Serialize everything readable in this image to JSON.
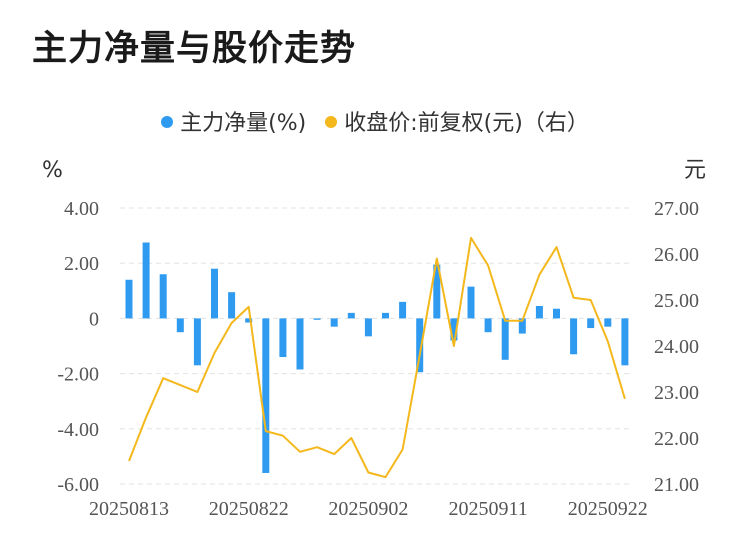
{
  "chart_data": {
    "type": "bar+line",
    "title": "主力净量与股价走势",
    "legend": [
      {
        "name": "主力净量(%)",
        "color": "#2f9bf0"
      },
      {
        "name": "收盘价:前复权(元)（右）",
        "color": "#f4b81c"
      }
    ],
    "left_unit": "%",
    "right_unit": "元",
    "left_ticks": [
      "4.00",
      "2.00",
      "0",
      "-2.00",
      "-4.00",
      "-6.00"
    ],
    "right_ticks": [
      "27.00",
      "26.00",
      "25.00",
      "24.00",
      "23.00",
      "22.00",
      "21.00"
    ],
    "left_range": [
      -6,
      4
    ],
    "right_range": [
      21,
      27
    ],
    "x_tick_labels": [
      "20250813",
      "20250822",
      "20250902",
      "20250911",
      "20250922"
    ],
    "x_tick_indices": [
      0,
      7,
      14,
      21,
      28
    ],
    "x": [
      "20250813",
      "20250814",
      "20250815",
      "20250818",
      "20250819",
      "20250820",
      "20250821",
      "20250822",
      "20250825",
      "20250826",
      "20250827",
      "20250828",
      "20250829",
      "20250901",
      "20250902",
      "20250903",
      "20250904",
      "20250905",
      "20250908",
      "20250909",
      "20250910",
      "20250911",
      "20250912",
      "20250915",
      "20250916",
      "20250917",
      "20250918",
      "20250919",
      "20250922",
      "20250923"
    ],
    "series": [
      {
        "name": "主力净量(%)",
        "type": "bar",
        "axis": "left",
        "color": "#2f9bf0",
        "values": [
          1.4,
          2.75,
          1.6,
          -0.5,
          -1.7,
          1.8,
          0.95,
          -0.15,
          -5.6,
          -1.4,
          -1.85,
          -0.05,
          -0.3,
          0.2,
          -0.65,
          0.2,
          0.6,
          -1.95,
          1.95,
          -0.8,
          1.15,
          -0.5,
          -1.5,
          -0.55,
          0.45,
          0.35,
          -1.3,
          -0.35,
          -0.3,
          -1.7
        ]
      },
      {
        "name": "收盘价:前复权(元)（右）",
        "type": "line",
        "axis": "right",
        "color": "#f4b81c",
        "values": [
          21.5,
          22.45,
          23.3,
          23.15,
          23.0,
          23.85,
          24.5,
          24.85,
          22.15,
          22.05,
          21.7,
          21.8,
          21.65,
          22.0,
          21.25,
          21.15,
          21.75,
          23.8,
          25.9,
          24.0,
          26.35,
          25.75,
          24.55,
          24.55,
          25.55,
          26.15,
          25.05,
          25.0,
          24.1,
          22.85
        ]
      }
    ],
    "grid": "horizontal dashed"
  }
}
